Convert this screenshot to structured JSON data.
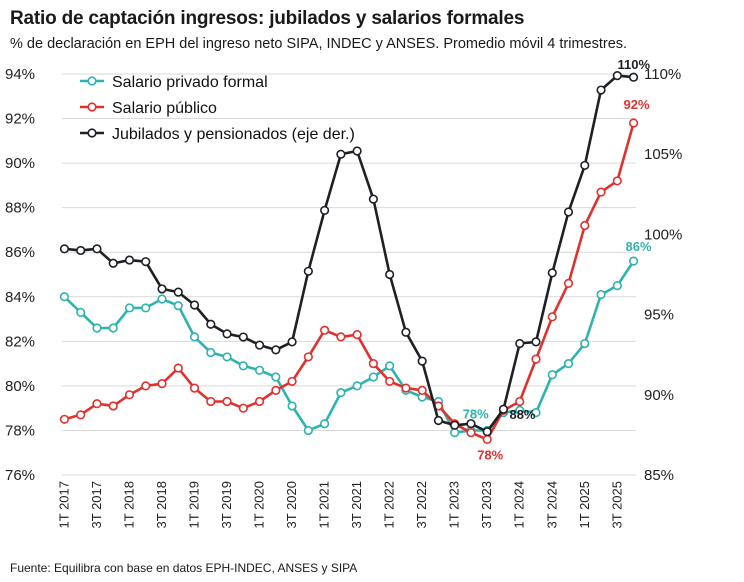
{
  "title": "Ratio de captación ingresos: jubilados y salarios formales",
  "subtitle": "% de declaración en EPH del ingreso neto SIPA, INDEC y ANSES. Promedio móvil 4 trimestres.",
  "source": "Fuente: Equilibra con base en datos EPH-INDEC, ANSES y SIPA",
  "colors": {
    "teal": "#2fb3ad",
    "red": "#e0312f",
    "black": "#1d2125",
    "grid": "#d9d9d9"
  },
  "chart_data": {
    "type": "line",
    "categories": [
      "1T 2017",
      "2T 2017",
      "3T 2017",
      "4T 2017",
      "1T 2018",
      "2T 2018",
      "3T 2018",
      "4T 2018",
      "1T 2019",
      "2T 2019",
      "3T 2019",
      "4T 2019",
      "1T 2020",
      "2T 2020",
      "3T 2020",
      "4T 2020",
      "1T 2021",
      "2T 2021",
      "3T 2021",
      "4T 2021",
      "1T 2022",
      "2T 2022",
      "3T 2022",
      "4T 2022",
      "1T 2023",
      "2T 2023",
      "3T 2023",
      "4T 2023",
      "1T 2024",
      "2T 2024",
      "3T 2024",
      "4T 2024",
      "1T 2025",
      "2T 2025",
      "3T 2025",
      "4T 2025"
    ],
    "x_tick_labels": [
      "1T 2017",
      "3T 2017",
      "1T 2018",
      "3T 2018",
      "1T 2019",
      "3T 2019",
      "1T 2020",
      "3T 2020",
      "1T 2021",
      "3T 2021",
      "1T 2022",
      "3T 2022",
      "1T 2023",
      "3T 2023",
      "1T 2024",
      "3T 2024",
      "1T 2025",
      "3T 2025"
    ],
    "y_left": {
      "lim": [
        76,
        94
      ],
      "ticks": [
        76,
        78,
        80,
        82,
        84,
        86,
        88,
        90,
        92,
        94
      ],
      "tick_labels": [
        "76%",
        "78%",
        "80%",
        "82%",
        "84%",
        "86%",
        "88%",
        "90%",
        "92%",
        "94%"
      ]
    },
    "y_right": {
      "lim": [
        85,
        110
      ],
      "ticks": [
        85,
        90,
        95,
        100,
        105,
        110
      ],
      "tick_labels": [
        "85%",
        "90%",
        "95%",
        "100%",
        "105%",
        "110%"
      ],
      "label": "eje der."
    },
    "grid": "horizontal",
    "legend_position": "top-left",
    "series": [
      {
        "name": "Salario privado formal",
        "color": "#2fb3ad",
        "axis": "left",
        "values": [
          84.0,
          83.3,
          82.6,
          82.6,
          83.5,
          83.5,
          83.9,
          83.6,
          82.2,
          81.5,
          81.3,
          80.9,
          80.7,
          80.4,
          79.1,
          78.0,
          78.3,
          79.7,
          80.0,
          80.4,
          80.9,
          79.8,
          79.5,
          79.3,
          77.9,
          78.0,
          78.0,
          78.8,
          78.9,
          78.8,
          80.5,
          81.0,
          81.9,
          84.1,
          84.5,
          85.6
        ],
        "end_label": "86%",
        "mid_label": "78%"
      },
      {
        "name": "Salario público",
        "color": "#e0312f",
        "axis": "left",
        "values": [
          78.5,
          78.7,
          79.2,
          79.1,
          79.6,
          80.0,
          80.1,
          80.8,
          79.9,
          79.3,
          79.3,
          79.0,
          79.3,
          79.8,
          80.2,
          81.3,
          82.5,
          82.2,
          82.3,
          81.0,
          80.2,
          79.9,
          79.8,
          79.1,
          78.3,
          77.9,
          77.6,
          78.9,
          79.3,
          81.2,
          83.1,
          84.6,
          87.2,
          88.7,
          89.2,
          91.8
        ],
        "end_label": "92%",
        "mid_label": "78%"
      },
      {
        "name": "Jubilados y pensionados (eje der.)",
        "color": "#1d2125",
        "axis": "right",
        "values": [
          99.1,
          99.0,
          99.1,
          98.2,
          98.4,
          98.3,
          96.6,
          96.4,
          95.6,
          94.4,
          93.8,
          93.6,
          93.1,
          92.8,
          93.3,
          97.7,
          101.5,
          105.0,
          105.2,
          102.2,
          97.5,
          93.9,
          92.1,
          88.4,
          88.1,
          88.2,
          87.7,
          89.1,
          93.2,
          93.3,
          97.6,
          101.4,
          104.3,
          109.0,
          109.9,
          109.8
        ],
        "end_label": "110%",
        "mid_label": "88%"
      }
    ]
  }
}
